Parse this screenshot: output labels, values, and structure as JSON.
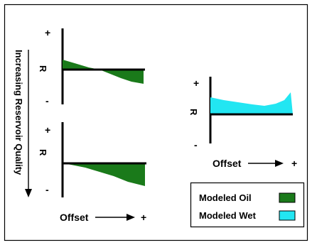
{
  "side_label": "Increasing Reservoir Quality",
  "y_axis": {
    "plus": "+",
    "minus": "-",
    "label": "R"
  },
  "x_axis": {
    "label": "Offset",
    "plus": "+"
  },
  "legend": {
    "items": [
      {
        "label": "Modeled Oil",
        "color": "#1a7a1a"
      },
      {
        "label": "Modeled Wet",
        "color": "#22e6f2"
      }
    ]
  },
  "colors": {
    "oil_fill": "#1a7a1a",
    "wet_fill": "#22e6f2",
    "line": "#000000",
    "border": "#000000"
  },
  "icons": {
    "arrow_down": "arrow-down-icon",
    "arrow_right": "arrow-right-icon"
  }
}
